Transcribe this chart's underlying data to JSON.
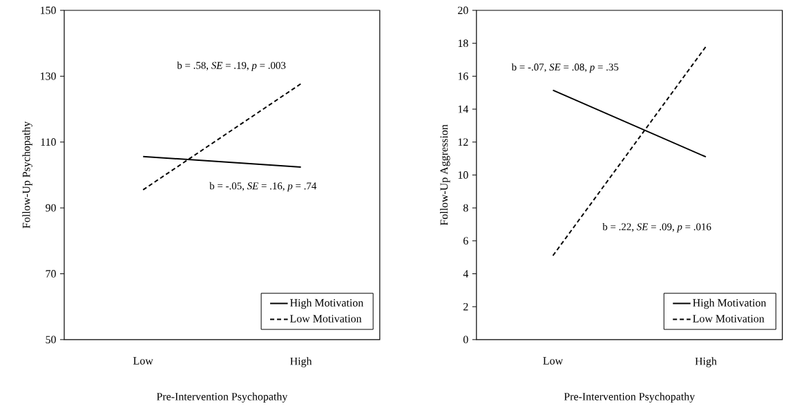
{
  "chart_data": [
    {
      "type": "line",
      "xlabel": "Pre-Intervention Psychopathy",
      "ylabel": "Follow-Up Psychopathy",
      "categories": [
        "Low",
        "High"
      ],
      "series": [
        {
          "name": "High Motivation",
          "color": "#000000",
          "line_style": "solid",
          "values": [
            105.6,
            102.4
          ]
        },
        {
          "name": "Low Motivation",
          "color": "#000000",
          "line_style": "dashed",
          "values": [
            95.5,
            127.7
          ]
        }
      ],
      "ylim": [
        50,
        150
      ],
      "yticks": [
        50,
        70,
        90,
        110,
        130,
        150
      ],
      "legend": "bottom right",
      "annotations": [
        "b = .58, *SE* = .19, *p* = .003",
        "b = -.05, *SE* = .16, *p* = .74"
      ]
    },
    {
      "type": "line",
      "xlabel": "Pre-Intervention Psychopathy",
      "ylabel": "Follow-Up Aggression",
      "categories": [
        "Low",
        "High"
      ],
      "series": [
        {
          "name": "High Motivation",
          "color": "#000000",
          "line_style": "solid",
          "values": [
            15.15,
            11.1
          ]
        },
        {
          "name": "Low Motivation",
          "color": "#000000",
          "line_style": "dashed",
          "values": [
            5.1,
            17.8
          ]
        }
      ],
      "ylim": [
        0,
        20
      ],
      "yticks": [
        0,
        2,
        4,
        6,
        8,
        10,
        12,
        14,
        16,
        18,
        20
      ],
      "legend": "bottom right",
      "annotations": [
        "b = -.07, *SE* = .08, *p* = .35",
        "b = .22, *SE* = .09, *p* = .016"
      ]
    }
  ]
}
